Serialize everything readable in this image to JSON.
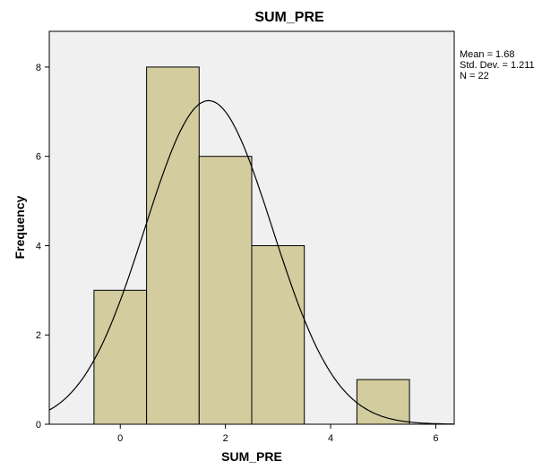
{
  "chart_data": {
    "type": "bar",
    "subtype": "histogram",
    "title": "SUM_PRE",
    "xlabel": "SUM_PRE",
    "ylabel": "Frequency",
    "bins": [
      {
        "start": -0.5,
        "end": 0.5,
        "count": 3
      },
      {
        "start": 0.5,
        "end": 1.5,
        "count": 8
      },
      {
        "start": 1.5,
        "end": 2.5,
        "count": 6
      },
      {
        "start": 2.5,
        "end": 3.5,
        "count": 4
      },
      {
        "start": 3.5,
        "end": 4.5,
        "count": 0
      },
      {
        "start": 4.5,
        "end": 5.5,
        "count": 1
      }
    ],
    "xlim": [
      -1.35,
      6.35
    ],
    "ylim": [
      0,
      8.8
    ],
    "x_ticks": [
      0,
      2,
      4,
      6
    ],
    "y_ticks": [
      0,
      2,
      4,
      6,
      8
    ],
    "normal_curve": {
      "mean": 1.68,
      "std_dev": 1.211,
      "n": 22,
      "bin_width": 1
    },
    "stats_lines": [
      "Mean = 1.68",
      "Std. Dev. = 1.211",
      "N = 22"
    ],
    "colors": {
      "plot_background": "#f0f0f0",
      "bar_fill": "#d2cc9e",
      "bar_stroke": "#000000",
      "curve": "#000000"
    },
    "grid": false,
    "legend": "none"
  }
}
